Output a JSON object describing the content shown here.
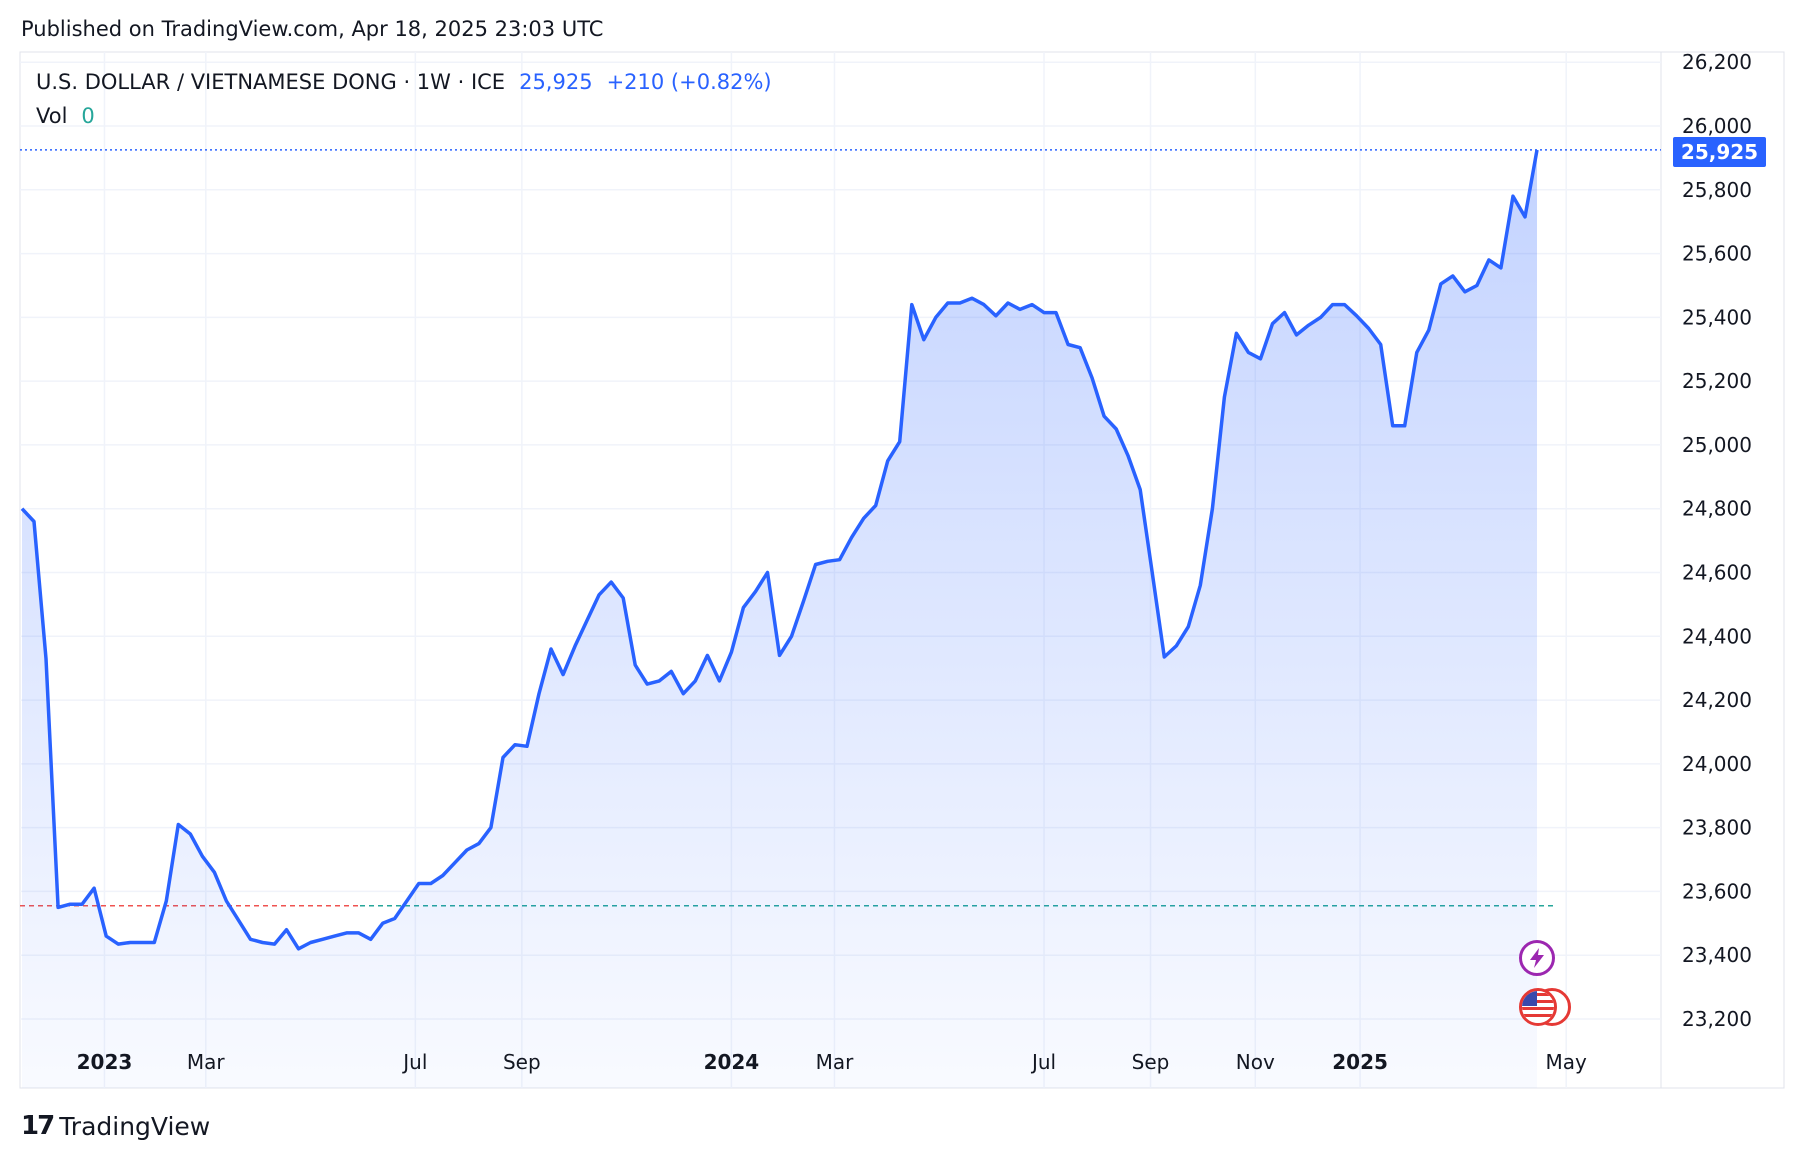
{
  "header": {
    "published": "Published on TradingView.com, Apr 18, 2025 23:03 UTC"
  },
  "legend": {
    "symbol": "U.S. DOLLAR / VIETNAMESE DONG · 1W · ICE",
    "last": "25,925",
    "change": "+210 (+0.82%)",
    "vol_label": "Vol",
    "vol_value": "0"
  },
  "price_tag": "25,925",
  "footer": {
    "brand": "TradingView"
  },
  "colors": {
    "line": "#2962ff",
    "fill": "#2962ff",
    "grid": "#f0f3fa",
    "ref_red": "#ef5350",
    "ref_teal": "#26a69a"
  },
  "icons": [
    "lightning-icon",
    "us-flag-icon"
  ],
  "chart_data": {
    "type": "area",
    "y_ticks": [
      "26,200",
      "26,000",
      "25,800",
      "25,600",
      "25,400",
      "25,200",
      "25,000",
      "24,800",
      "24,600",
      "24,400",
      "24,200",
      "24,000",
      "23,800",
      "23,600",
      "23,400",
      "23,200"
    ],
    "y_tick_values": [
      26200,
      26000,
      25800,
      25600,
      25400,
      25200,
      25000,
      24800,
      24600,
      24400,
      24200,
      24000,
      23800,
      23600,
      23400,
      23200
    ],
    "ylim": [
      23200,
      26200
    ],
    "x_ticks": [
      {
        "label": "2023",
        "date": "2023-01-01",
        "bold": true
      },
      {
        "label": "Mar",
        "date": "2023-03-01",
        "bold": false
      },
      {
        "label": "Jul",
        "date": "2023-07-01",
        "bold": false
      },
      {
        "label": "Sep",
        "date": "2023-09-01",
        "bold": false
      },
      {
        "label": "2024",
        "date": "2024-01-01",
        "bold": true
      },
      {
        "label": "Mar",
        "date": "2024-03-01",
        "bold": false
      },
      {
        "label": "Jul",
        "date": "2024-07-01",
        "bold": false
      },
      {
        "label": "Sep",
        "date": "2024-09-01",
        "bold": false
      },
      {
        "label": "Nov",
        "date": "2024-11-01",
        "bold": false
      },
      {
        "label": "2025",
        "date": "2025-01-01",
        "bold": true
      },
      {
        "label": "May",
        "date": "2025-05-01",
        "bold": false
      }
    ],
    "reference_value": 23555,
    "series": [
      {
        "values": [
          [
            "2022-11-14",
            24800
          ],
          [
            "2022-11-21",
            24760
          ],
          [
            "2022-11-28",
            24330
          ],
          [
            "2022-12-05",
            23550
          ],
          [
            "2022-12-12",
            23560
          ],
          [
            "2022-12-19",
            23560
          ],
          [
            "2022-12-26",
            23610
          ],
          [
            "2023-01-02",
            23460
          ],
          [
            "2023-01-09",
            23435
          ],
          [
            "2023-01-16",
            23440
          ],
          [
            "2023-01-23",
            23440
          ],
          [
            "2023-01-30",
            23440
          ],
          [
            "2023-02-06",
            23570
          ],
          [
            "2023-02-13",
            23810
          ],
          [
            "2023-02-20",
            23780
          ],
          [
            "2023-02-27",
            23710
          ],
          [
            "2023-03-06",
            23660
          ],
          [
            "2023-03-13",
            23570
          ],
          [
            "2023-03-20",
            23510
          ],
          [
            "2023-03-27",
            23450
          ],
          [
            "2023-04-03",
            23440
          ],
          [
            "2023-04-10",
            23435
          ],
          [
            "2023-04-17",
            23480
          ],
          [
            "2023-04-24",
            23420
          ],
          [
            "2023-05-01",
            23440
          ],
          [
            "2023-05-08",
            23450
          ],
          [
            "2023-05-15",
            23460
          ],
          [
            "2023-05-22",
            23470
          ],
          [
            "2023-05-29",
            23470
          ],
          [
            "2023-06-05",
            23450
          ],
          [
            "2023-06-12",
            23500
          ],
          [
            "2023-06-19",
            23515
          ],
          [
            "2023-06-26",
            23570
          ],
          [
            "2023-07-03",
            23625
          ],
          [
            "2023-07-10",
            23625
          ],
          [
            "2023-07-17",
            23650
          ],
          [
            "2023-07-24",
            23690
          ],
          [
            "2023-07-31",
            23730
          ],
          [
            "2023-08-07",
            23750
          ],
          [
            "2023-08-14",
            23800
          ],
          [
            "2023-08-21",
            24020
          ],
          [
            "2023-08-28",
            24060
          ],
          [
            "2023-09-04",
            24055
          ],
          [
            "2023-09-11",
            24220
          ],
          [
            "2023-09-18",
            24360
          ],
          [
            "2023-09-25",
            24280
          ],
          [
            "2023-10-02",
            24370
          ],
          [
            "2023-10-09",
            24450
          ],
          [
            "2023-10-16",
            24530
          ],
          [
            "2023-10-23",
            24570
          ],
          [
            "2023-10-30",
            24520
          ],
          [
            "2023-11-06",
            24310
          ],
          [
            "2023-11-13",
            24250
          ],
          [
            "2023-11-20",
            24260
          ],
          [
            "2023-11-27",
            24290
          ],
          [
            "2023-12-04",
            24220
          ],
          [
            "2023-12-11",
            24260
          ],
          [
            "2023-12-18",
            24340
          ],
          [
            "2023-12-25",
            24260
          ],
          [
            "2024-01-01",
            24350
          ],
          [
            "2024-01-08",
            24490
          ],
          [
            "2024-01-15",
            24540
          ],
          [
            "2024-01-22",
            24600
          ],
          [
            "2024-01-29",
            24340
          ],
          [
            "2024-02-05",
            24400
          ],
          [
            "2024-02-12",
            24510
          ],
          [
            "2024-02-19",
            24625
          ],
          [
            "2024-02-26",
            24635
          ],
          [
            "2024-03-04",
            24640
          ],
          [
            "2024-03-11",
            24710
          ],
          [
            "2024-03-18",
            24770
          ],
          [
            "2024-03-25",
            24810
          ],
          [
            "2024-04-01",
            24950
          ],
          [
            "2024-04-08",
            25010
          ],
          [
            "2024-04-15",
            25440
          ],
          [
            "2024-04-22",
            25330
          ],
          [
            "2024-04-29",
            25400
          ],
          [
            "2024-05-06",
            25445
          ],
          [
            "2024-05-13",
            25445
          ],
          [
            "2024-05-20",
            25460
          ],
          [
            "2024-05-27",
            25440
          ],
          [
            "2024-06-03",
            25405
          ],
          [
            "2024-06-10",
            25445
          ],
          [
            "2024-06-17",
            25425
          ],
          [
            "2024-06-24",
            25440
          ],
          [
            "2024-07-01",
            25415
          ],
          [
            "2024-07-08",
            25415
          ],
          [
            "2024-07-15",
            25315
          ],
          [
            "2024-07-22",
            25305
          ],
          [
            "2024-07-29",
            25210
          ],
          [
            "2024-08-05",
            25090
          ],
          [
            "2024-08-12",
            25050
          ],
          [
            "2024-08-19",
            24965
          ],
          [
            "2024-08-26",
            24860
          ],
          [
            "2024-09-02",
            24600
          ],
          [
            "2024-09-09",
            24335
          ],
          [
            "2024-09-16",
            24370
          ],
          [
            "2024-09-23",
            24430
          ],
          [
            "2024-09-30",
            24560
          ],
          [
            "2024-10-07",
            24800
          ],
          [
            "2024-10-14",
            25150
          ],
          [
            "2024-10-21",
            25350
          ],
          [
            "2024-10-28",
            25290
          ],
          [
            "2024-11-04",
            25270
          ],
          [
            "2024-11-11",
            25380
          ],
          [
            "2024-11-18",
            25415
          ],
          [
            "2024-11-25",
            25345
          ],
          [
            "2024-12-02",
            25375
          ],
          [
            "2024-12-09",
            25400
          ],
          [
            "2024-12-16",
            25440
          ],
          [
            "2024-12-23",
            25440
          ],
          [
            "2024-12-30",
            25405
          ],
          [
            "2025-01-06",
            25365
          ],
          [
            "2025-01-13",
            25315
          ],
          [
            "2025-01-20",
            25060
          ],
          [
            "2025-01-27",
            25060
          ],
          [
            "2025-02-03",
            25290
          ],
          [
            "2025-02-10",
            25360
          ],
          [
            "2025-02-17",
            25505
          ],
          [
            "2025-02-24",
            25530
          ],
          [
            "2025-03-03",
            25480
          ],
          [
            "2025-03-10",
            25500
          ],
          [
            "2025-03-17",
            25580
          ],
          [
            "2025-03-24",
            25555
          ],
          [
            "2025-03-31",
            25780
          ],
          [
            "2025-04-07",
            25715
          ],
          [
            "2025-04-14",
            25925
          ]
        ]
      }
    ]
  }
}
